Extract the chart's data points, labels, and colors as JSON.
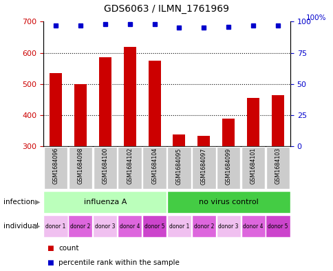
{
  "title": "GDS6063 / ILMN_1761969",
  "samples": [
    "GSM1684096",
    "GSM1684098",
    "GSM1684100",
    "GSM1684102",
    "GSM1684104",
    "GSM1684095",
    "GSM1684097",
    "GSM1684099",
    "GSM1684101",
    "GSM1684103"
  ],
  "counts": [
    535,
    500,
    585,
    620,
    575,
    338,
    333,
    390,
    455,
    465
  ],
  "percentiles": [
    97,
    97,
    98,
    98,
    98,
    95,
    95,
    96,
    97,
    97
  ],
  "ylim_left": [
    300,
    700
  ],
  "yticks_left": [
    300,
    400,
    500,
    600,
    700
  ],
  "ylim_right": [
    0,
    100
  ],
  "yticks_right": [
    0,
    25,
    50,
    75,
    100
  ],
  "bar_color": "#cc0000",
  "dot_color": "#0000cc",
  "infection_labels": [
    "influenza A",
    "no virus control"
  ],
  "infection_color_light": "#bbffbb",
  "infection_color_dark": "#44cc44",
  "individual_colors": [
    "#f0c0f0",
    "#dd66dd",
    "#f0c0f0",
    "#dd66dd",
    "#cc44cc",
    "#f0c0f0",
    "#dd66dd",
    "#f0c0f0",
    "#dd66dd",
    "#cc44cc"
  ],
  "individual_labels": [
    "donor 1",
    "donor 2",
    "donor 3",
    "donor 4",
    "donor 5",
    "donor 1",
    "donor 2",
    "donor 3",
    "donor 4",
    "donor 5"
  ],
  "sample_bg": "#cccccc",
  "legend_count_color": "#cc0000",
  "legend_dot_color": "#0000cc"
}
